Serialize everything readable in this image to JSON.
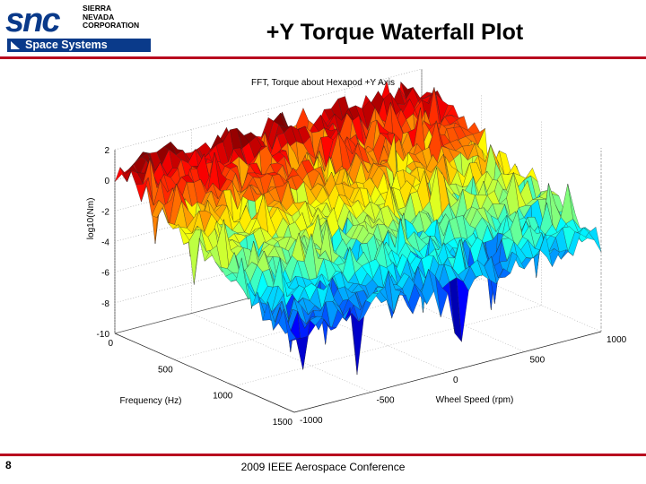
{
  "header": {
    "logo_snc": "snc",
    "logo_corp": [
      "SIERRA",
      "NEVADA",
      "CORPORATION"
    ],
    "logo_space": "Space Systems",
    "title": "+Y Torque Waterfall Plot"
  },
  "footer": {
    "page_number": "8",
    "conference": "2009 IEEE Aerospace Conference"
  },
  "colors": {
    "brand_blue": "#0a3a8a",
    "rule_red": "#b8001e"
  },
  "chart_data": {
    "type": "surface",
    "title": "FFT, Torque about Hexapod +Y Axis",
    "xlabel": "Frequency (Hz)",
    "ylabel": "Wheel Speed (rpm)",
    "zlabel": "log10(Nm)",
    "x_range": [
      0,
      1500
    ],
    "y_range": [
      -1000,
      1000
    ],
    "z_range": [
      -10,
      2
    ],
    "x_ticks": [
      0,
      500,
      1000,
      1500
    ],
    "y_ticks": [
      -1000,
      -500,
      0,
      500,
      1000
    ],
    "z_ticks": [
      2,
      0,
      -2,
      -4,
      -6,
      -8,
      -10
    ],
    "x_tick_labels": [
      "0",
      "500",
      "1000",
      "1500"
    ],
    "y_tick_labels": [
      "-1000",
      "-500",
      "0",
      "500",
      "1000"
    ],
    "z_tick_labels": [
      "2",
      "0",
      "-2",
      "-4",
      "-6",
      "-8",
      "-10"
    ],
    "colormap": "jet",
    "grid": true
  }
}
